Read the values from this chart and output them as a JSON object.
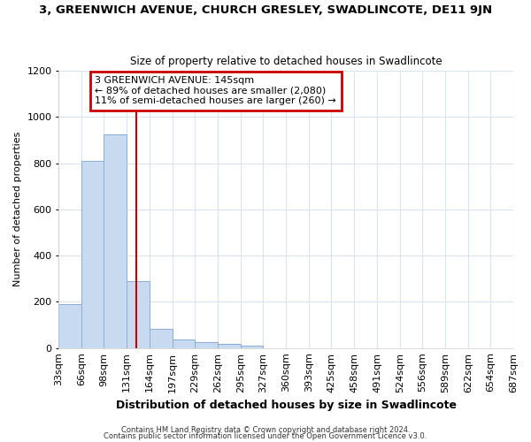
{
  "title": "3, GREENWICH AVENUE, CHURCH GRESLEY, SWADLINCOTE, DE11 9JN",
  "subtitle": "Size of property relative to detached houses in Swadlincote",
  "xlabel": "Distribution of detached houses by size in Swadlincote",
  "ylabel": "Number of detached properties",
  "bar_color": "#c8daf0",
  "bar_edge_color": "#8aafd4",
  "bins": [
    33,
    66,
    98,
    131,
    164,
    197,
    229,
    262,
    295,
    327,
    360,
    393,
    425,
    458,
    491,
    524,
    556,
    589,
    622,
    654,
    687
  ],
  "bar_heights": [
    190,
    810,
    925,
    290,
    83,
    38,
    24,
    18,
    11,
    0,
    0,
    0,
    0,
    0,
    0,
    0,
    0,
    0,
    0,
    0
  ],
  "property_size": 145,
  "red_line_color": "#cc0000",
  "annotation_line1": "3 GREENWICH AVENUE: 145sqm",
  "annotation_line2": "← 89% of detached houses are smaller (2,080)",
  "annotation_line3": "11% of semi-detached houses are larger (260) →",
  "annotation_box_color": "#cc0000",
  "ylim": [
    0,
    1200
  ],
  "yticks": [
    0,
    200,
    400,
    600,
    800,
    1000,
    1200
  ],
  "background_color": "#ffffff",
  "grid_color": "#d8e4f0",
  "footer_text1": "Contains HM Land Registry data © Crown copyright and database right 2024.",
  "footer_text2": "Contains public sector information licensed under the Open Government Licence v3.0."
}
